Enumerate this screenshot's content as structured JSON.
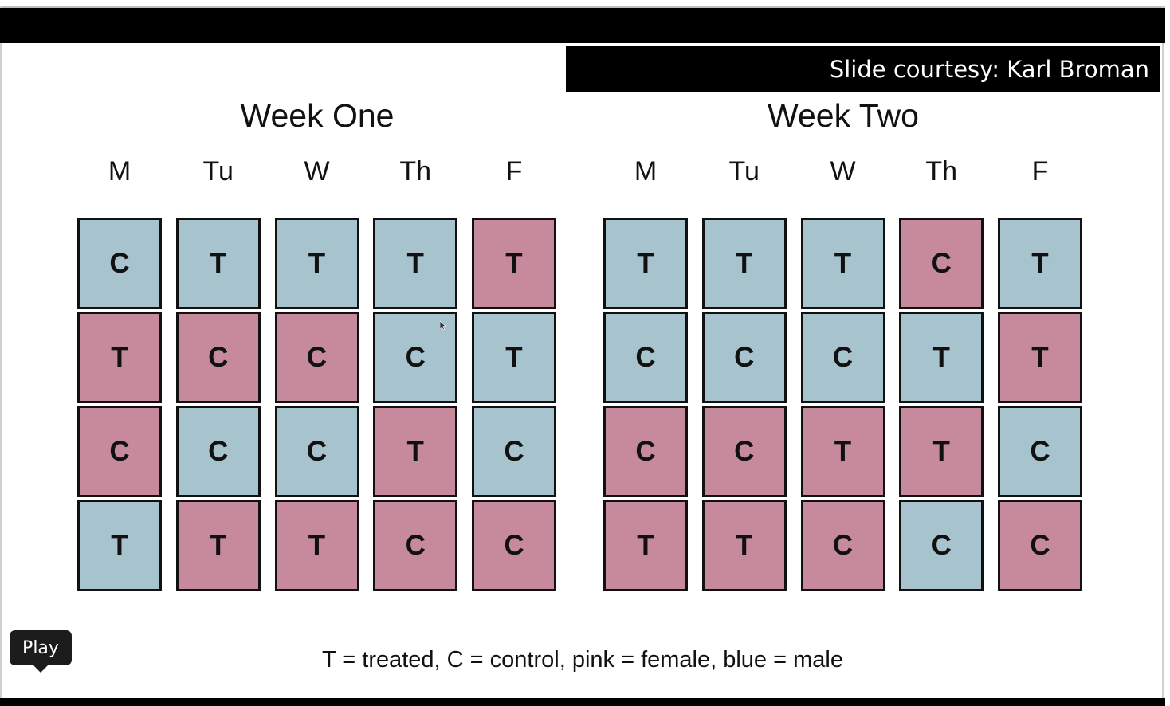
{
  "credit": "Slide courtesy: Karl Broman",
  "weeks": [
    {
      "title": "Week One",
      "days": [
        "M",
        "Tu",
        "W",
        "Th",
        "F"
      ],
      "grid": [
        [
          {
            "t": "C",
            "c": "blue"
          },
          {
            "t": "T",
            "c": "pink"
          },
          {
            "t": "C",
            "c": "pink"
          },
          {
            "t": "T",
            "c": "blue"
          }
        ],
        [
          {
            "t": "T",
            "c": "blue"
          },
          {
            "t": "C",
            "c": "pink"
          },
          {
            "t": "C",
            "c": "blue"
          },
          {
            "t": "T",
            "c": "pink"
          }
        ],
        [
          {
            "t": "T",
            "c": "blue"
          },
          {
            "t": "C",
            "c": "pink"
          },
          {
            "t": "C",
            "c": "blue"
          },
          {
            "t": "T",
            "c": "pink"
          }
        ],
        [
          {
            "t": "T",
            "c": "blue"
          },
          {
            "t": "C",
            "c": "blue"
          },
          {
            "t": "T",
            "c": "pink"
          },
          {
            "t": "C",
            "c": "pink"
          }
        ],
        [
          {
            "t": "T",
            "c": "pink"
          },
          {
            "t": "T",
            "c": "blue"
          },
          {
            "t": "C",
            "c": "blue"
          },
          {
            "t": "C",
            "c": "pink"
          }
        ]
      ]
    },
    {
      "title": "Week Two",
      "days": [
        "M",
        "Tu",
        "W",
        "Th",
        "F"
      ],
      "grid": [
        [
          {
            "t": "T",
            "c": "blue"
          },
          {
            "t": "C",
            "c": "blue"
          },
          {
            "t": "C",
            "c": "pink"
          },
          {
            "t": "T",
            "c": "pink"
          }
        ],
        [
          {
            "t": "T",
            "c": "blue"
          },
          {
            "t": "C",
            "c": "blue"
          },
          {
            "t": "C",
            "c": "pink"
          },
          {
            "t": "T",
            "c": "pink"
          }
        ],
        [
          {
            "t": "T",
            "c": "blue"
          },
          {
            "t": "C",
            "c": "blue"
          },
          {
            "t": "T",
            "c": "pink"
          },
          {
            "t": "C",
            "c": "pink"
          }
        ],
        [
          {
            "t": "C",
            "c": "pink"
          },
          {
            "t": "T",
            "c": "blue"
          },
          {
            "t": "T",
            "c": "pink"
          },
          {
            "t": "C",
            "c": "blue"
          }
        ],
        [
          {
            "t": "T",
            "c": "blue"
          },
          {
            "t": "T",
            "c": "pink"
          },
          {
            "t": "C",
            "c": "blue"
          },
          {
            "t": "C",
            "c": "pink"
          }
        ]
      ]
    }
  ],
  "colors": {
    "blue": "#a7c4ce",
    "pink": "#c78a9d"
  },
  "legend": "T = treated, C = control, pink = female, blue = male",
  "play_tooltip": "Play"
}
